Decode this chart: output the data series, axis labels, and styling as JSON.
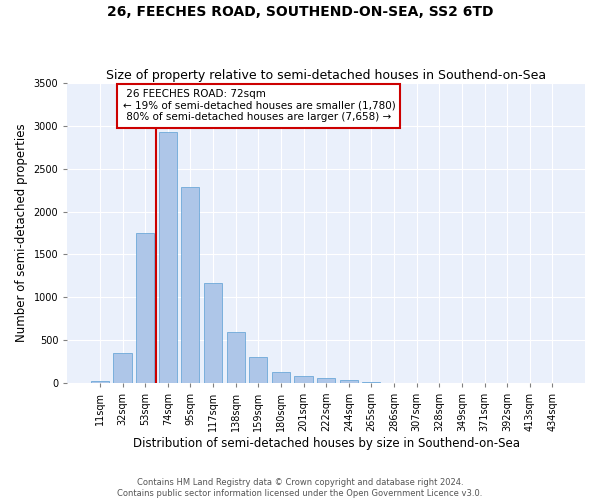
{
  "title": "26, FEECHES ROAD, SOUTHEND-ON-SEA, SS2 6TD",
  "subtitle": "Size of property relative to semi-detached houses in Southend-on-Sea",
  "xlabel": "Distribution of semi-detached houses by size in Southend-on-Sea",
  "ylabel": "Number of semi-detached properties",
  "categories": [
    "11sqm",
    "32sqm",
    "53sqm",
    "74sqm",
    "95sqm",
    "117sqm",
    "138sqm",
    "159sqm",
    "180sqm",
    "201sqm",
    "222sqm",
    "244sqm",
    "265sqm",
    "286sqm",
    "307sqm",
    "328sqm",
    "349sqm",
    "371sqm",
    "392sqm",
    "413sqm",
    "434sqm"
  ],
  "values": [
    25,
    345,
    1750,
    2930,
    2290,
    1165,
    590,
    305,
    130,
    75,
    55,
    35,
    15,
    0,
    0,
    0,
    0,
    0,
    0,
    0,
    0
  ],
  "bar_color": "#aec6e8",
  "bar_edge_color": "#5a9fd4",
  "bg_color": "#eaf0fb",
  "grid_color": "#ffffff",
  "vline_color": "#cc0000",
  "vline_x_index": 2.5,
  "property_label": "26 FEECHES ROAD: 72sqm",
  "smaller_pct": "19%",
  "smaller_n": "1,780",
  "larger_pct": "80%",
  "larger_n": "7,658",
  "annotation_box_color": "#cc0000",
  "footer_line1": "Contains HM Land Registry data © Crown copyright and database right 2024.",
  "footer_line2": "Contains public sector information licensed under the Open Government Licence v3.0.",
  "ylim": [
    0,
    3500
  ],
  "yticks": [
    0,
    500,
    1000,
    1500,
    2000,
    2500,
    3000,
    3500
  ],
  "title_fontsize": 10,
  "subtitle_fontsize": 9,
  "tick_fontsize": 7,
  "ylabel_fontsize": 8.5,
  "xlabel_fontsize": 8.5,
  "annot_fontsize": 7.5
}
